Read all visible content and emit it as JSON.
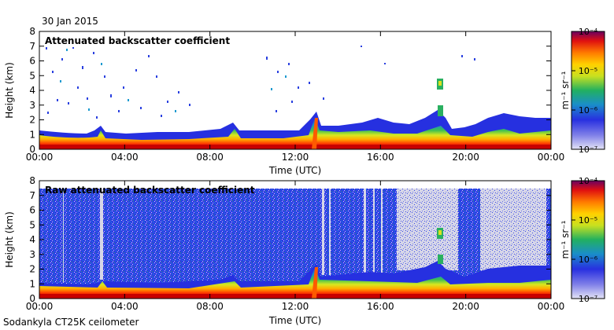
{
  "figure": {
    "date": "30 Jan 2015",
    "footer": "Sodankyla CT25K ceilometer"
  },
  "chart_data": [
    {
      "type": "heatmap",
      "title": "Attenuated backscatter coefficient",
      "xlabel": "Time (UTC)",
      "ylabel": "Height (km)",
      "xlim": [
        0,
        24
      ],
      "ylim": [
        0,
        8
      ],
      "x_ticks": [
        "00:00",
        "04:00",
        "08:00",
        "12:00",
        "16:00",
        "20:00",
        "00:00"
      ],
      "y_ticks": [
        "0",
        "1",
        "2",
        "3",
        "4",
        "5",
        "6",
        "7",
        "8"
      ],
      "colorbar": {
        "label": "m⁻¹ sr⁻¹",
        "scale": "log",
        "ticks": [
          "10⁻⁴",
          "10⁻⁵",
          "10⁻⁶",
          "10⁻⁷"
        ],
        "range": [
          1e-07,
          0.0001
        ]
      },
      "features": [
        {
          "name": "boundary layer top",
          "time_h": [
            0,
            6,
            12,
            13,
            16,
            18,
            24
          ],
          "height_km": [
            0.8,
            0.7,
            0.8,
            1.4,
            1.6,
            1.0,
            1.6
          ]
        },
        {
          "name": "elevated layer",
          "time_h": [
            18.5,
            19.2
          ],
          "height_km": [
            2.4,
            4.9
          ]
        }
      ]
    },
    {
      "type": "heatmap",
      "title": "Raw attenuated backscatter coefficient",
      "xlabel": "Time (UTC)",
      "ylabel": "Height (km)",
      "xlim": [
        0,
        24
      ],
      "ylim": [
        0,
        8
      ],
      "x_ticks": [
        "00:00",
        "04:00",
        "08:00",
        "12:00",
        "16:00",
        "20:00",
        "00:00"
      ],
      "y_ticks": [
        "0",
        "1",
        "2",
        "3",
        "4",
        "5",
        "6",
        "7",
        "8"
      ],
      "colorbar": {
        "label": "m⁻¹ sr⁻¹",
        "scale": "log",
        "ticks": [
          "10⁻⁴",
          "10⁻⁵",
          "10⁻⁶",
          "10⁻⁷"
        ],
        "range": [
          1e-07,
          0.0001
        ]
      },
      "features": [
        {
          "name": "noise ceiling",
          "height_km": 7.5
        },
        {
          "name": "low-noise periods",
          "time_h": [
            [
              16.8,
              19.8
            ],
            [
              20.8,
              24
            ]
          ]
        }
      ]
    }
  ]
}
